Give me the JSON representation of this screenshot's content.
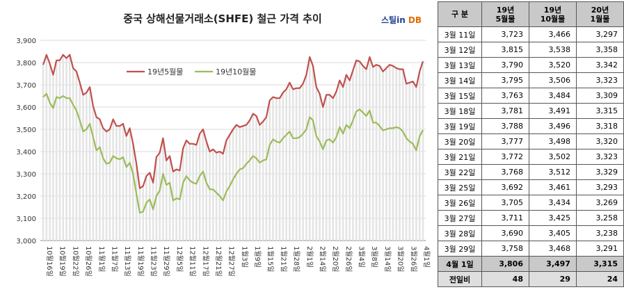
{
  "title": "중국 상해선물거래소(SHFE)  철근 가격 추이",
  "brand": {
    "part1": "스틸in",
    "part2": " DB"
  },
  "chart_data": {
    "type": "line",
    "y_ticks": [
      "3,000",
      "3,100",
      "3,200",
      "3,300",
      "3,400",
      "3,500",
      "3,600",
      "3,700",
      "3,800",
      "3,900"
    ],
    "ylim": [
      3000,
      3900
    ],
    "x_tick_labels": [
      "10월16일",
      "10월19일",
      "10월22일",
      "10월26일",
      "11월1일",
      "11월7일",
      "11월13일",
      "11월19일",
      "11월23일",
      "11월29일",
      "12월5일",
      "12월11일",
      "12월17일",
      "12월21일",
      "12월27일",
      "1월3일",
      "1월9일",
      "1월15일",
      "1월21일",
      "1월28일",
      "2월1일",
      "2월14일",
      "2월20일",
      "2월26일",
      "3월4일",
      "3월8일",
      "3월14일",
      "3월20일",
      "3월26일",
      "4월1일"
    ],
    "legend_position": "top-left",
    "colors": {
      "s1": "#c0504d",
      "s2": "#9bbb59",
      "bars": "#e4e4e4",
      "grid": "#d9d9d9"
    },
    "series": [
      {
        "name": "19년5월물",
        "values": [
          3790,
          3835,
          3795,
          3745,
          3810,
          3810,
          3835,
          3820,
          3835,
          3775,
          3760,
          3710,
          3655,
          3665,
          3690,
          3605,
          3555,
          3545,
          3505,
          3490,
          3500,
          3545,
          3515,
          3515,
          3525,
          3470,
          3505,
          3435,
          3345,
          3235,
          3245,
          3290,
          3305,
          3260,
          3375,
          3395,
          3460,
          3360,
          3380,
          3310,
          3320,
          3315,
          3415,
          3450,
          3435,
          3435,
          3430,
          3480,
          3500,
          3445,
          3400,
          3410,
          3395,
          3400,
          3390,
          3450,
          3475,
          3500,
          3520,
          3510,
          3515,
          3520,
          3540,
          3570,
          3560,
          3520,
          3535,
          3555,
          3630,
          3645,
          3640,
          3640,
          3665,
          3680,
          3710,
          3680,
          3685,
          3685,
          3705,
          3745,
          3825,
          3785,
          3690,
          3660,
          3600,
          3655,
          3655,
          3640,
          3670,
          3720,
          3690,
          3745,
          3720,
          3765,
          3810,
          3805,
          3785,
          3770,
          3825,
          3780,
          3790,
          3785,
          3760,
          3775,
          3790,
          3785,
          3775,
          3770,
          3770,
          3705,
          3710,
          3715,
          3690,
          3760,
          3806
        ]
      },
      {
        "name": "19년10월물",
        "values": [
          3645,
          3660,
          3620,
          3595,
          3645,
          3640,
          3650,
          3640,
          3640,
          3610,
          3585,
          3540,
          3490,
          3500,
          3525,
          3465,
          3405,
          3420,
          3370,
          3345,
          3350,
          3380,
          3370,
          3365,
          3375,
          3330,
          3350,
          3300,
          3210,
          3125,
          3130,
          3170,
          3185,
          3140,
          3200,
          3225,
          3300,
          3250,
          3260,
          3180,
          3190,
          3185,
          3260,
          3290,
          3270,
          3260,
          3255,
          3290,
          3310,
          3260,
          3230,
          3230,
          3215,
          3200,
          3180,
          3220,
          3245,
          3275,
          3300,
          3320,
          3325,
          3345,
          3360,
          3380,
          3370,
          3350,
          3360,
          3365,
          3430,
          3455,
          3445,
          3440,
          3460,
          3475,
          3490,
          3460,
          3460,
          3465,
          3480,
          3500,
          3555,
          3540,
          3470,
          3445,
          3410,
          3450,
          3455,
          3440,
          3465,
          3510,
          3480,
          3520,
          3505,
          3540,
          3580,
          3590,
          3575,
          3560,
          3585,
          3530,
          3530,
          3515,
          3495,
          3500,
          3505,
          3505,
          3510,
          3505,
          3490,
          3460,
          3445,
          3435,
          3405,
          3468,
          3497
        ]
      }
    ]
  },
  "table": {
    "headers": [
      "구   분",
      "19년\n5월물",
      "19년\n10월물",
      "20년\n1월물"
    ],
    "rows": [
      [
        "3월 11일",
        "3,723",
        "3,466",
        "3,297"
      ],
      [
        "3월 12일",
        "3,815",
        "3,538",
        "3,358"
      ],
      [
        "3월 13일",
        "3,790",
        "3,520",
        "3,342"
      ],
      [
        "3월 14일",
        "3,795",
        "3,506",
        "3,323"
      ],
      [
        "3월 15일",
        "3,763",
        "3,484",
        "3,309"
      ],
      [
        "3월 18일",
        "3,781",
        "3,491",
        "3,315"
      ],
      [
        "3월 19일",
        "3,788",
        "3,496",
        "3,318"
      ],
      [
        "3월 20일",
        "3,777",
        "3,498",
        "3,320"
      ],
      [
        "3월 21일",
        "3,772",
        "3,502",
        "3,323"
      ],
      [
        "3월 22일",
        "3,768",
        "3,512",
        "3,329"
      ],
      [
        "3월 25일",
        "3,692",
        "3,461",
        "3,293"
      ],
      [
        "3월 26일",
        "3,705",
        "3,434",
        "3,269"
      ],
      [
        "3월 27일",
        "3,711",
        "3,425",
        "3,258"
      ],
      [
        "3월 28일",
        "3,690",
        "3,405",
        "3,238"
      ],
      [
        "3월 29일",
        "3,758",
        "3,468",
        "3,291"
      ]
    ],
    "today": [
      "4월 1일",
      "3,806",
      "3,497",
      "3,315"
    ],
    "diff": [
      "전일비",
      "48",
      "29",
      "24"
    ]
  }
}
